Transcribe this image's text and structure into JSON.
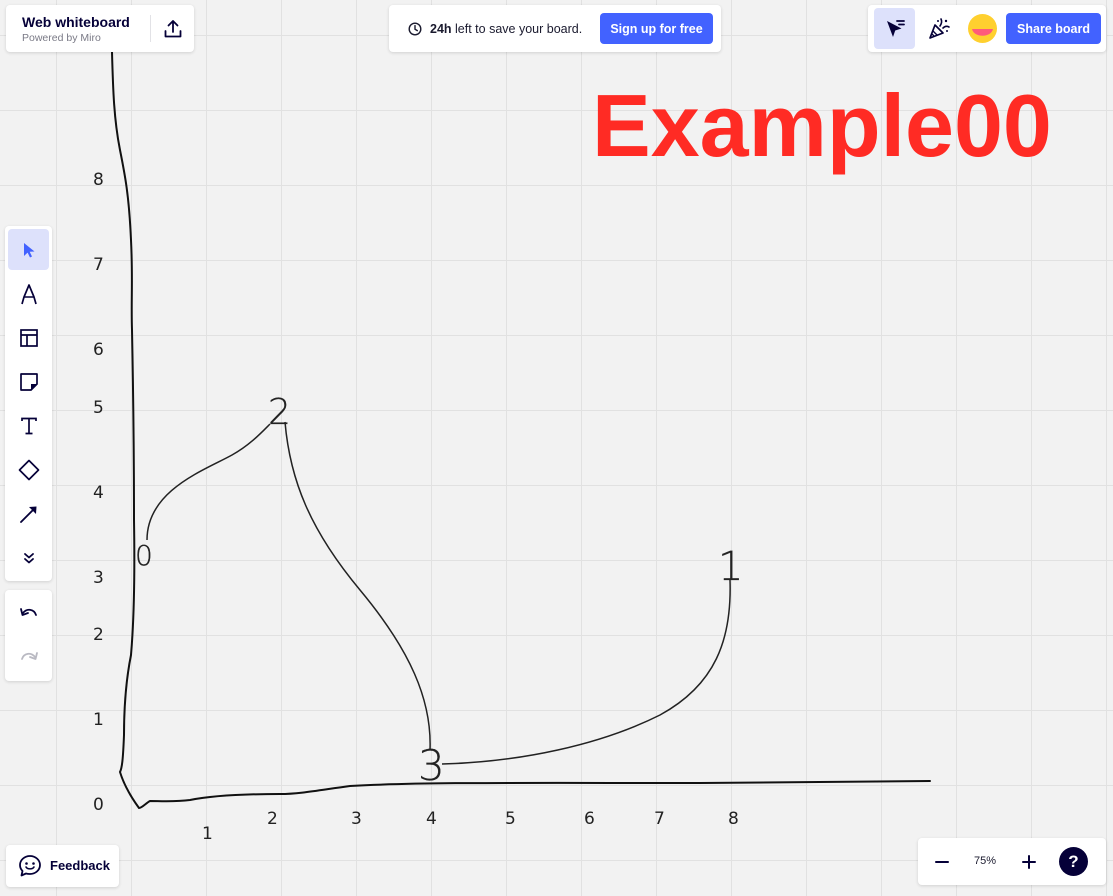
{
  "brand": {
    "title": "Web whiteboard",
    "subtitle": "Powered by Miro",
    "export_icon": "upload-icon"
  },
  "save_notice": {
    "hours": "24h",
    "text": "left to save your board.",
    "signup_label": "Sign up for free",
    "icon": "clock-icon"
  },
  "top_right": {
    "select_mode_icon": "cursor-select-icon",
    "celebrate_icon": "party-popper-icon",
    "share_label": "Share board",
    "accent": "#4262ff"
  },
  "toolbar": {
    "tools": [
      {
        "name": "select",
        "icon": "cursor-icon",
        "active": true
      },
      {
        "name": "pen",
        "icon": "pen-icon"
      },
      {
        "name": "templates",
        "icon": "layout-icon"
      },
      {
        "name": "sticky-note",
        "icon": "sticky-note-icon"
      },
      {
        "name": "text",
        "icon": "text-icon"
      },
      {
        "name": "shapes",
        "icon": "diamond-icon"
      },
      {
        "name": "connection-line",
        "icon": "arrow-line-icon"
      },
      {
        "name": "more",
        "icon": "chevrons-down-icon"
      }
    ],
    "undo_icon": "undo-icon",
    "redo_icon": "redo-icon"
  },
  "feedback": {
    "label": "Feedback",
    "icon": "smiley-chat-icon"
  },
  "zoom": {
    "value": "75%",
    "help": "?"
  },
  "board": {
    "heading": "Example00",
    "heading_color": "#ff2b24",
    "y_axis_labels": [
      "0",
      "1",
      "2",
      "3",
      "4",
      "5",
      "6",
      "7",
      "8"
    ],
    "x_axis_labels": [
      "1",
      "2",
      "3",
      "4",
      "5",
      "6",
      "7",
      "8"
    ],
    "node_labels": [
      "0",
      "2",
      "3",
      "1"
    ]
  }
}
